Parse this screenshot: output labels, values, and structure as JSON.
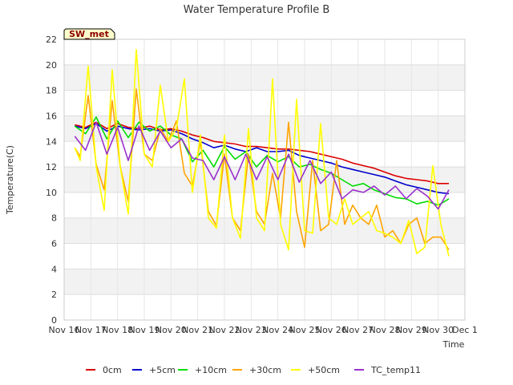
{
  "chart_data": {
    "type": "line",
    "title": "Water Temperature Profile B",
    "xlabel": "Time",
    "ylabel": "Temperature(C)",
    "badge": "SW_met",
    "ylim": [
      0,
      22
    ],
    "yticks": [
      0,
      2,
      4,
      6,
      8,
      10,
      12,
      14,
      16,
      18,
      20,
      22
    ],
    "xlim": [
      0,
      15
    ],
    "xticks": [
      "Nov 16",
      "Nov 17",
      "Nov 18",
      "Nov 19",
      "Nov 20",
      "Nov 21",
      "Nov 22",
      "Nov 23",
      "Nov 24",
      "Nov 25",
      "Nov 26",
      "Nov 27",
      "Nov 28",
      "Nov 29",
      "Nov 30",
      "Dec 1"
    ],
    "grid": true,
    "legend_position": "bottom",
    "series": [
      {
        "name": "0cm",
        "color": "#dd0000",
        "x": [
          0.4,
          0.8,
          1.2,
          1.6,
          2.0,
          2.4,
          2.8,
          3.2,
          3.6,
          4.0,
          4.4,
          4.8,
          5.2,
          5.6,
          6.0,
          6.4,
          6.8,
          7.2,
          7.6,
          8.0,
          8.4,
          8.8,
          9.2,
          9.6,
          10.0,
          10.4,
          10.8,
          11.2,
          11.6,
          12.0,
          12.4,
          12.8,
          13.2,
          13.6,
          14.0,
          14.4
        ],
        "y": [
          15.3,
          15.1,
          15.5,
          15.0,
          15.4,
          15.1,
          15.0,
          15.2,
          14.9,
          15.0,
          14.8,
          14.5,
          14.3,
          14.0,
          13.9,
          13.8,
          13.6,
          13.6,
          13.5,
          13.4,
          13.4,
          13.3,
          13.2,
          13.0,
          12.8,
          12.6,
          12.3,
          12.1,
          11.9,
          11.6,
          11.3,
          11.1,
          11.0,
          10.9,
          10.7,
          10.7
        ]
      },
      {
        "name": "+5cm",
        "color": "#0000cc",
        "x": [
          0.4,
          0.8,
          1.2,
          1.6,
          2.0,
          2.4,
          2.8,
          3.2,
          3.6,
          4.0,
          4.4,
          4.8,
          5.2,
          5.6,
          6.0,
          6.4,
          6.8,
          7.2,
          7.6,
          8.0,
          8.4,
          8.8,
          9.2,
          9.6,
          10.0,
          10.4,
          10.8,
          11.2,
          11.6,
          12.0,
          12.4,
          12.8,
          13.2,
          13.6,
          14.0,
          14.4
        ],
        "y": [
          15.2,
          15.0,
          15.4,
          14.8,
          15.2,
          15.0,
          14.9,
          15.0,
          14.8,
          14.9,
          14.6,
          14.2,
          13.9,
          13.5,
          13.7,
          13.4,
          13.2,
          13.5,
          13.2,
          13.2,
          13.3,
          12.9,
          12.7,
          12.5,
          12.3,
          12.0,
          11.8,
          11.6,
          11.4,
          11.2,
          10.9,
          10.6,
          10.4,
          10.2,
          10.0,
          9.9
        ]
      },
      {
        "name": "+10cm",
        "color": "#00dd00",
        "x": [
          0.4,
          0.8,
          1.2,
          1.6,
          2.0,
          2.4,
          2.8,
          3.2,
          3.6,
          4.0,
          4.4,
          4.8,
          5.2,
          5.6,
          6.0,
          6.4,
          6.8,
          7.2,
          7.6,
          8.0,
          8.4,
          8.8,
          9.2,
          9.6,
          10.0,
          10.4,
          10.8,
          11.2,
          11.6,
          12.0,
          12.4,
          12.8,
          13.2,
          13.6,
          14.0,
          14.4
        ],
        "y": [
          15.2,
          14.6,
          15.9,
          14.2,
          15.6,
          14.3,
          15.5,
          14.8,
          15.2,
          14.5,
          14.2,
          12.4,
          13.3,
          12.0,
          13.6,
          12.6,
          13.2,
          12.0,
          12.9,
          12.4,
          12.8,
          12.0,
          12.2,
          11.8,
          11.5,
          11.0,
          10.5,
          10.7,
          10.2,
          9.9,
          9.6,
          9.5,
          9.1,
          9.3,
          9.0,
          9.5
        ]
      },
      {
        "name": "+30cm",
        "color": "#ffa500",
        "x": [
          0.4,
          0.6,
          0.9,
          1.2,
          1.5,
          1.8,
          2.1,
          2.4,
          2.7,
          3.0,
          3.3,
          3.6,
          3.9,
          4.2,
          4.5,
          4.8,
          5.1,
          5.4,
          5.7,
          6.0,
          6.3,
          6.6,
          6.9,
          7.2,
          7.5,
          7.8,
          8.1,
          8.4,
          8.7,
          9.0,
          9.3,
          9.6,
          9.9,
          10.2,
          10.5,
          10.8,
          11.1,
          11.4,
          11.7,
          12.0,
          12.3,
          12.6,
          12.9,
          13.2,
          13.5,
          13.8,
          14.1,
          14.4
        ],
        "y": [
          13.5,
          12.8,
          17.6,
          12.2,
          10.2,
          17.2,
          12.0,
          9.3,
          18.1,
          13.0,
          12.5,
          15.0,
          14.0,
          15.6,
          11.5,
          10.5,
          14.0,
          8.5,
          7.4,
          13.0,
          8.0,
          7.0,
          13.0,
          8.5,
          7.5,
          11.5,
          8.0,
          15.5,
          8.5,
          5.7,
          12.5,
          7.0,
          7.5,
          12.5,
          7.5,
          9.0,
          8.0,
          7.5,
          9.0,
          6.5,
          7.0,
          6.0,
          7.5,
          8.0,
          6.0,
          6.5,
          6.5,
          5.5
        ]
      },
      {
        "name": "+50cm",
        "color": "#ffff00",
        "x": [
          0.4,
          0.6,
          0.9,
          1.2,
          1.5,
          1.8,
          2.1,
          2.4,
          2.7,
          3.0,
          3.3,
          3.6,
          3.9,
          4.2,
          4.5,
          4.8,
          5.1,
          5.4,
          5.7,
          6.0,
          6.3,
          6.6,
          6.9,
          7.2,
          7.5,
          7.8,
          8.1,
          8.4,
          8.7,
          9.0,
          9.3,
          9.6,
          9.9,
          10.2,
          10.5,
          10.8,
          11.1,
          11.4,
          11.7,
          12.0,
          12.3,
          12.6,
          12.9,
          13.2,
          13.5,
          13.8,
          14.1,
          14.4
        ],
        "y": [
          13.5,
          12.5,
          19.9,
          12.0,
          8.6,
          19.6,
          12.0,
          8.3,
          21.2,
          13.0,
          12.0,
          18.4,
          14.0,
          15.0,
          18.9,
          10.0,
          14.5,
          8.0,
          7.2,
          14.5,
          8.0,
          6.4,
          15.0,
          8.0,
          7.0,
          18.9,
          7.5,
          5.5,
          17.3,
          7.0,
          6.8,
          15.4,
          8.0,
          7.5,
          9.5,
          7.5,
          8.0,
          8.5,
          7.0,
          6.8,
          6.5,
          6.0,
          7.8,
          5.2,
          5.7,
          12.1,
          7.5,
          5.0
        ]
      },
      {
        "name": "TC_temp11",
        "color": "#9932cc",
        "x": [
          0.4,
          0.8,
          1.2,
          1.6,
          2.0,
          2.4,
          2.8,
          3.2,
          3.6,
          4.0,
          4.4,
          4.8,
          5.2,
          5.6,
          6.0,
          6.4,
          6.8,
          7.2,
          7.6,
          8.0,
          8.4,
          8.8,
          9.2,
          9.6,
          10.0,
          10.4,
          10.8,
          11.2,
          11.6,
          12.0,
          12.4,
          12.8,
          13.2,
          13.6,
          14.0,
          14.4
        ],
        "y": [
          14.4,
          13.3,
          15.5,
          13.0,
          15.1,
          12.5,
          15.2,
          13.3,
          14.8,
          13.5,
          14.2,
          12.7,
          12.5,
          11.0,
          12.8,
          11.0,
          13.0,
          11.0,
          12.8,
          11.0,
          13.0,
          10.8,
          12.5,
          10.7,
          11.6,
          9.5,
          10.2,
          10.0,
          10.5,
          9.8,
          10.5,
          9.5,
          10.3,
          9.7,
          8.7,
          10.2
        ]
      }
    ]
  }
}
